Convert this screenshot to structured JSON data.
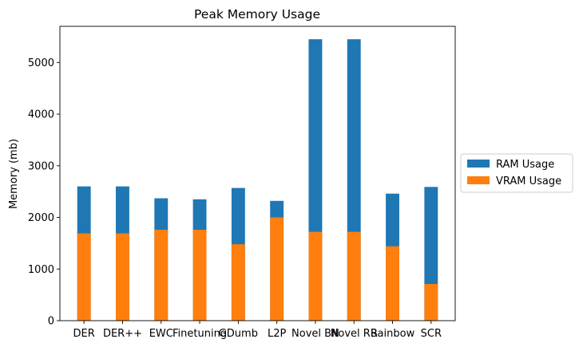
{
  "chart_data": {
    "type": "bar",
    "stacked": false,
    "overlay": true,
    "title": "Peak Memory Usage",
    "xlabel": "",
    "ylabel": "Memory (mb)",
    "ylim": [
      0,
      5700
    ],
    "yticks": [
      0,
      1000,
      2000,
      3000,
      4000,
      5000
    ],
    "categories": [
      "DER",
      "DER++",
      "EWC",
      "Finetuning",
      "GDumb",
      "L2P",
      "Novel BN",
      "Novel RB",
      "Rainbow",
      "SCR"
    ],
    "series": [
      {
        "name": "RAM Usage",
        "color": "#1f77b4",
        "values": [
          2600,
          2600,
          2370,
          2350,
          2570,
          2320,
          5450,
          5450,
          2460,
          2590
        ]
      },
      {
        "name": "VRAM Usage",
        "color": "#ff7f0e",
        "values": [
          1690,
          1690,
          1760,
          1760,
          1480,
          2000,
          1720,
          1720,
          1440,
          710
        ]
      }
    ],
    "legend_position": "right",
    "grid": false
  }
}
